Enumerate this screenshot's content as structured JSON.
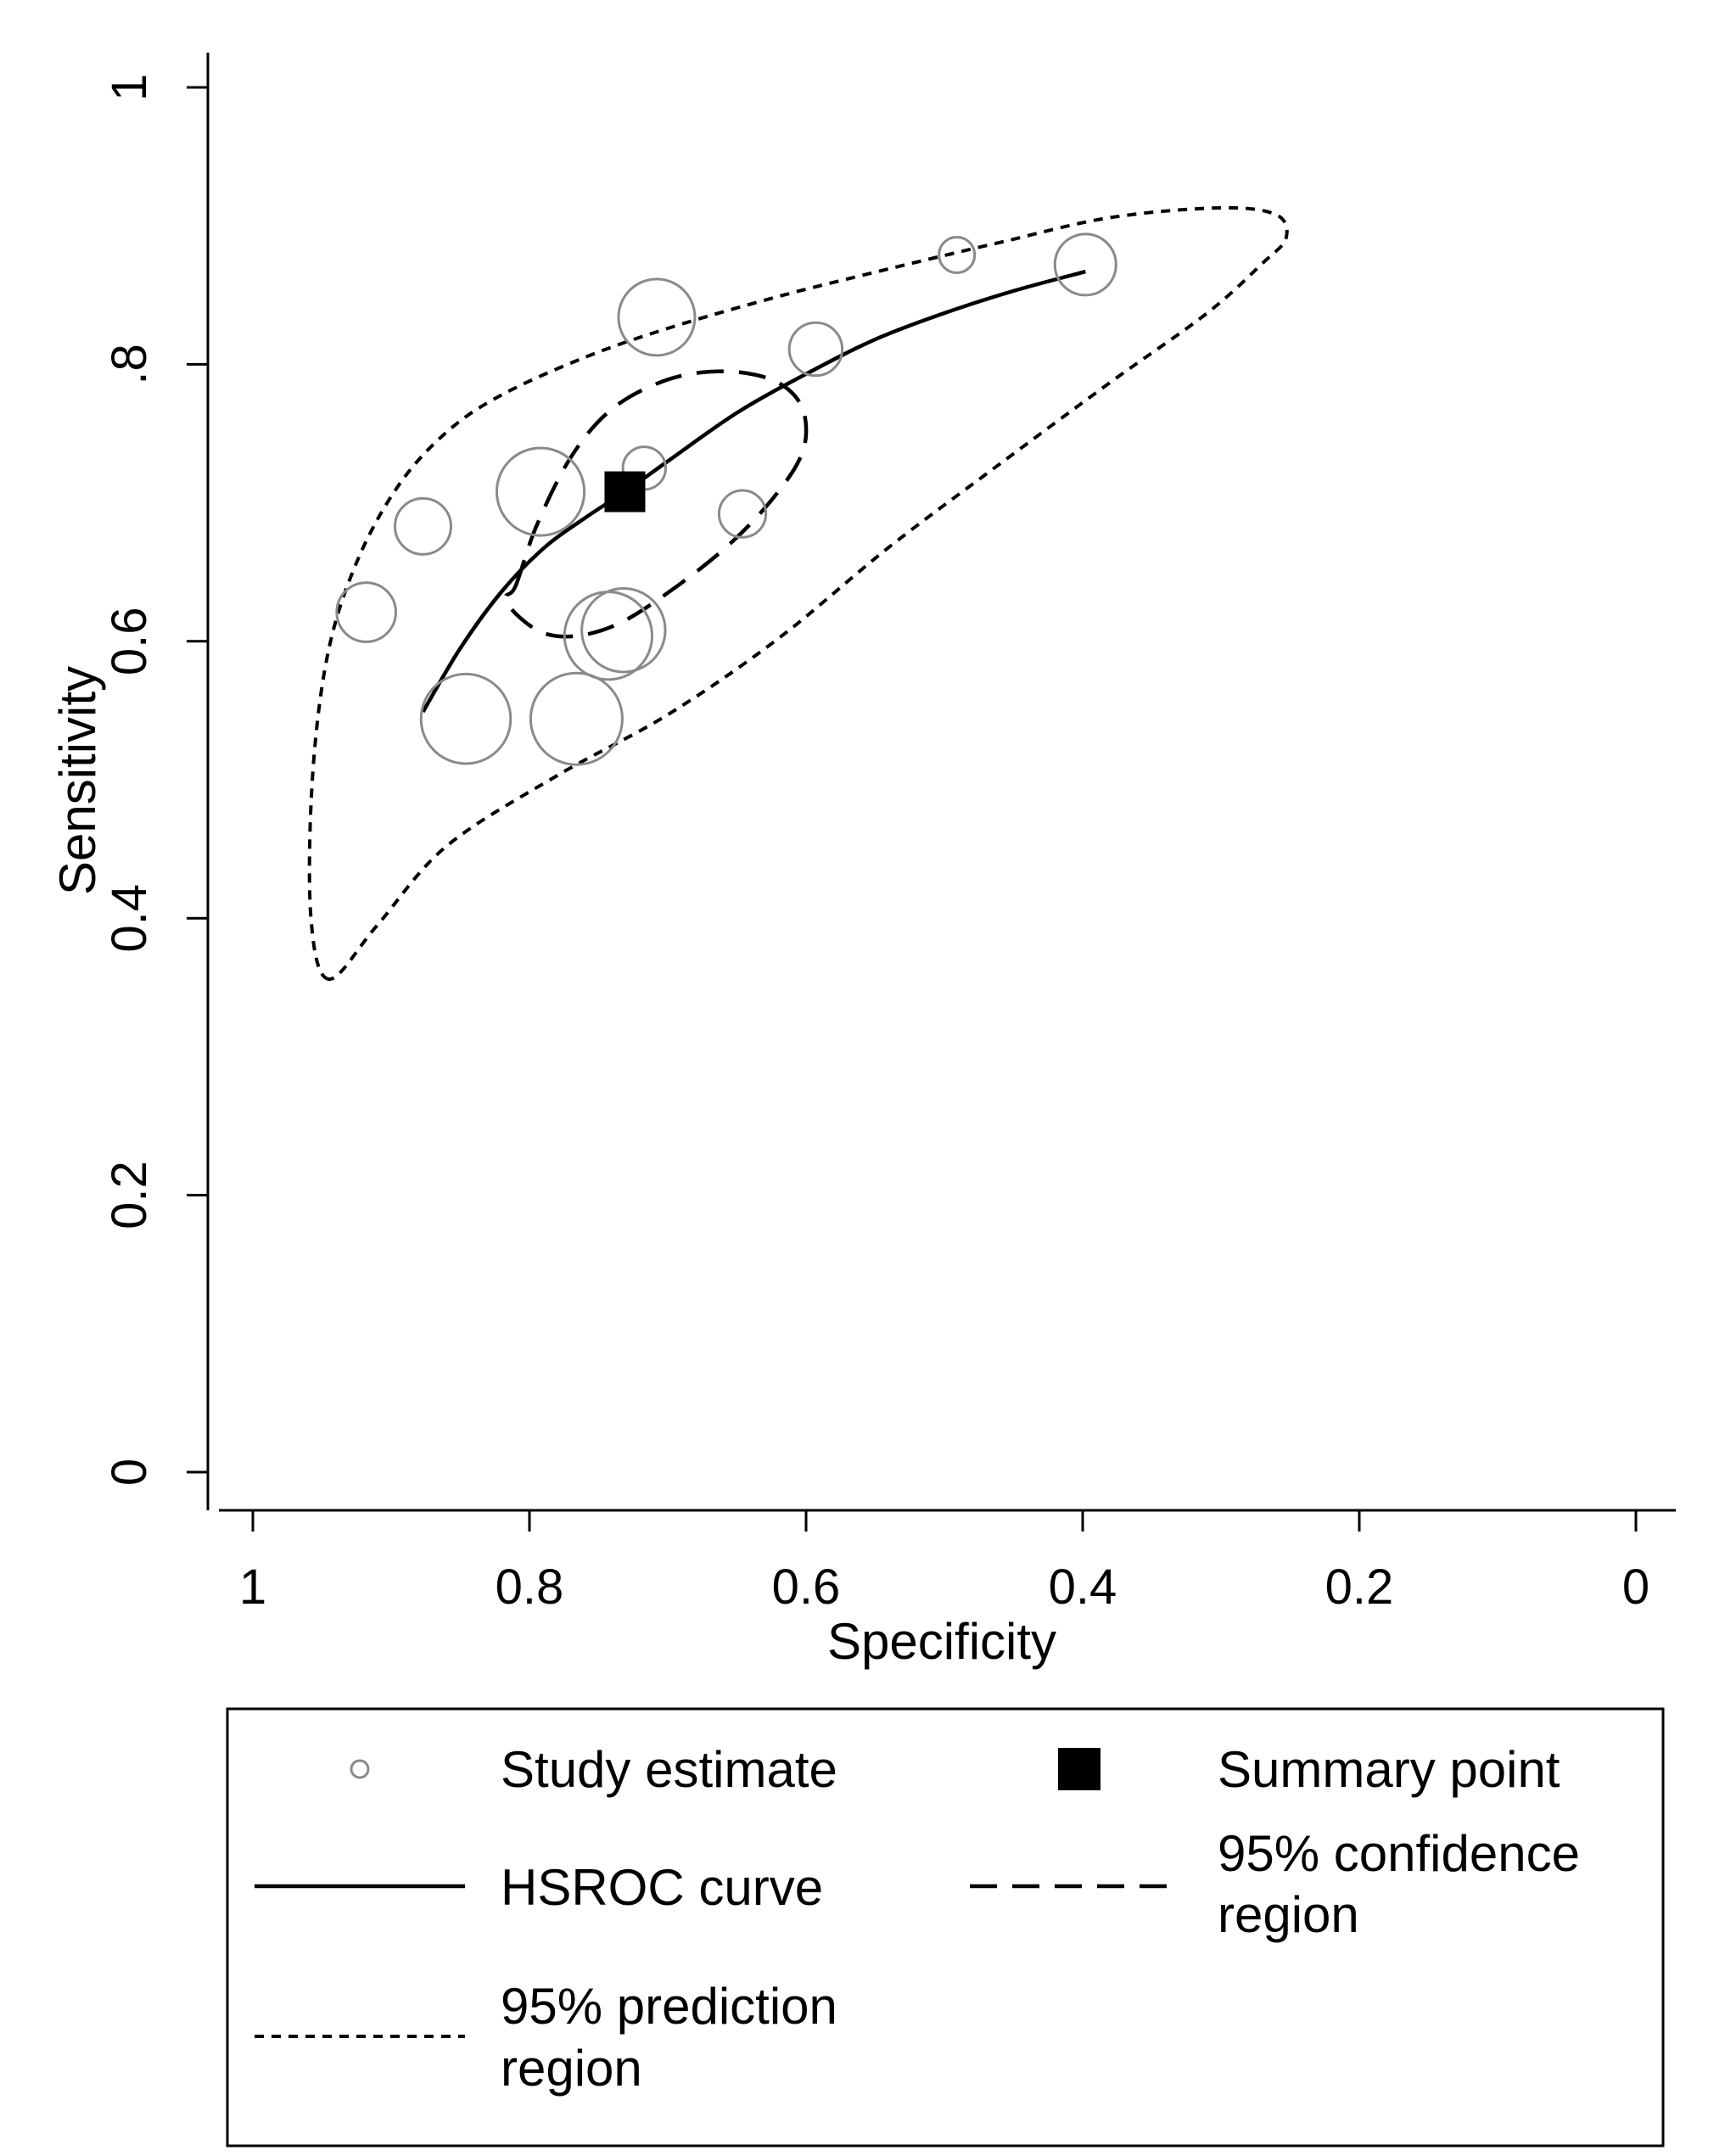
{
  "chart_data": {
    "type": "scatter",
    "title": "",
    "xlabel": "Specificity",
    "ylabel": "Sensitivity",
    "xlim": [
      1,
      0
    ],
    "ylim": [
      0,
      1
    ],
    "x_reversed": true,
    "x_ticks": [
      1,
      0.8,
      0.6,
      0.4,
      0.2,
      0
    ],
    "x_tick_labels": [
      "1",
      "0.8",
      "0.6",
      "0.4",
      "0.2",
      "0"
    ],
    "y_ticks": [
      0,
      0.2,
      0.4,
      0.6,
      0.8,
      1
    ],
    "y_tick_labels": [
      "0",
      "0.2",
      "0.4",
      "0.6",
      ".8",
      "1"
    ],
    "study_estimates": [
      {
        "specificity": 0.491,
        "sensitivity": 0.879,
        "weight": 0.15
      },
      {
        "specificity": 0.398,
        "sensitivity": 0.872,
        "weight": 0.4
      },
      {
        "specificity": 0.708,
        "sensitivity": 0.834,
        "weight": 0.55
      },
      {
        "specificity": 0.593,
        "sensitivity": 0.811,
        "weight": 0.32
      },
      {
        "specificity": 0.717,
        "sensitivity": 0.725,
        "weight": 0.22
      },
      {
        "specificity": 0.792,
        "sensitivity": 0.708,
        "weight": 0.66
      },
      {
        "specificity": 0.877,
        "sensitivity": 0.683,
        "weight": 0.35
      },
      {
        "specificity": 0.646,
        "sensitivity": 0.692,
        "weight": 0.26
      },
      {
        "specificity": 0.918,
        "sensitivity": 0.621,
        "weight": 0.38
      },
      {
        "specificity": 0.732,
        "sensitivity": 0.608,
        "weight": 0.62
      },
      {
        "specificity": 0.743,
        "sensitivity": 0.604,
        "weight": 0.66
      },
      {
        "specificity": 0.846,
        "sensitivity": 0.544,
        "weight": 0.68
      },
      {
        "specificity": 0.766,
        "sensitivity": 0.544,
        "weight": 0.7
      }
    ],
    "summary_point": {
      "specificity": 0.731,
      "sensitivity": 0.708
    },
    "hsroc_curve": {
      "x": [
        0.877,
        0.85,
        0.82,
        0.79,
        0.76,
        0.731,
        0.7,
        0.65,
        0.6,
        0.55,
        0.5,
        0.45,
        0.398
      ],
      "y": [
        0.549,
        0.595,
        0.636,
        0.667,
        0.689,
        0.708,
        0.73,
        0.765,
        0.793,
        0.818,
        0.837,
        0.853,
        0.867
      ]
    },
    "confidence_region": {
      "x": [
        0.81,
        0.795,
        0.77,
        0.74,
        0.7,
        0.66,
        0.625,
        0.605,
        0.6,
        0.607,
        0.63,
        0.66,
        0.7,
        0.735,
        0.765,
        0.79,
        0.81,
        0.817,
        0.81
      ],
      "y": [
        0.64,
        0.683,
        0.733,
        0.768,
        0.789,
        0.795,
        0.789,
        0.773,
        0.75,
        0.727,
        0.696,
        0.666,
        0.635,
        0.613,
        0.604,
        0.606,
        0.62,
        0.632,
        0.64
      ]
    },
    "prediction_region": {
      "x": [
        0.945,
        0.958,
        0.957,
        0.946,
        0.925,
        0.895,
        0.86,
        0.82,
        0.76,
        0.7,
        0.62,
        0.54,
        0.46,
        0.38,
        0.3,
        0.26,
        0.253,
        0.27,
        0.31,
        0.38,
        0.46,
        0.54,
        0.62,
        0.7,
        0.78,
        0.86,
        0.91,
        0.945
      ],
      "y": [
        0.356,
        0.4,
        0.5,
        0.59,
        0.657,
        0.712,
        0.751,
        0.778,
        0.805,
        0.826,
        0.849,
        0.869,
        0.888,
        0.906,
        0.913,
        0.908,
        0.891,
        0.873,
        0.837,
        0.787,
        0.728,
        0.668,
        0.602,
        0.547,
        0.503,
        0.452,
        0.395,
        0.356
      ]
    },
    "legend": {
      "placement": "bottom",
      "study": "Study estimate",
      "summary": "Summary point",
      "hsroc": "HSROC curve",
      "confidence_line1": "95% confidence",
      "confidence_line2": "region",
      "prediction_line1": "95% prediction",
      "prediction_line2": "region"
    }
  }
}
